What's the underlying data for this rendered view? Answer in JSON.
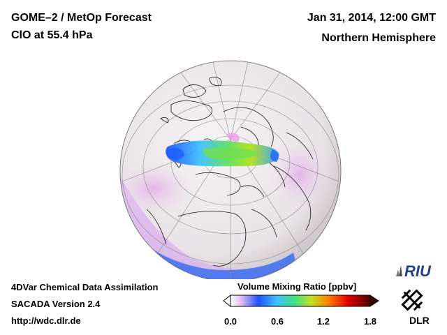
{
  "header": {
    "title_line1": "GOME–2 / MetOp Forecast",
    "title_line2": "ClO at 55.4 hPa",
    "date": "Jan 31, 2014, 12:00 GMT",
    "region": "Northern Hemisphere"
  },
  "footer": {
    "line1": "4DVar Chemical Data Assimilation",
    "line2": "SACADA Version 2.4",
    "line3": "http://wdc.dlr.de"
  },
  "colorbar": {
    "title": "Volume Mixing Ratio [ppbv]",
    "ticks": [
      "0.0",
      "0.6",
      "1.2",
      "1.8"
    ],
    "colors": [
      "#ffffff",
      "#c080e0",
      "#2050ff",
      "#40c0ff",
      "#40e080",
      "#c0e020",
      "#ff8000",
      "#e00000",
      "#500000"
    ]
  },
  "logos": {
    "riu": "RIU",
    "dlr": "DLR"
  },
  "map": {
    "projection": "orthographic",
    "ocean_color": "#eae6e8",
    "land_outline": "#000000",
    "clo_colors": [
      "#2050ff",
      "#40c0ff",
      "#40e080",
      "#c0e020"
    ]
  }
}
